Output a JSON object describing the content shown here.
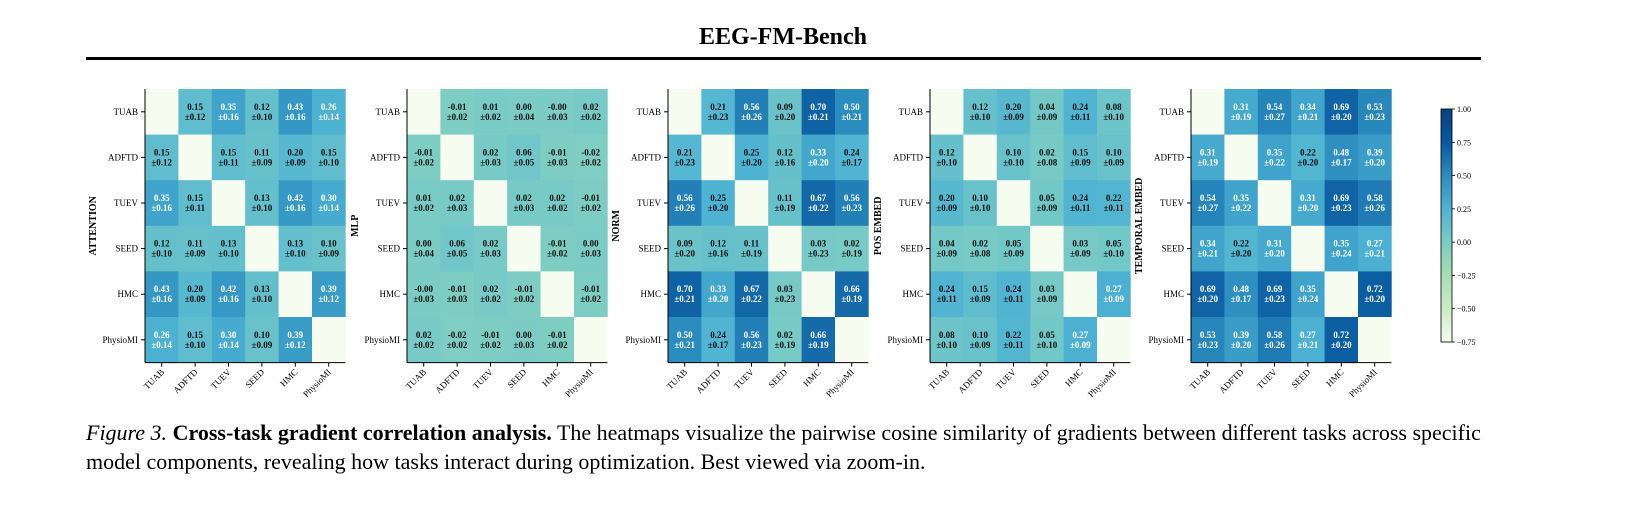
{
  "header_title": "EEG-FM-Bench",
  "caption": {
    "figure_label": "Figure 3.",
    "bold_text": "Cross-task gradient correlation analysis.",
    "text": " The heatmaps visualize the pairwise cosine similarity of gradients between different tasks across specific model components, revealing how tasks interact during optimization. Best viewed via zoom-in."
  },
  "chart_data": [
    {
      "type": "heatmap",
      "ylabel": "ATTENTION",
      "categories": [
        "TUAB",
        "ADFTD",
        "TUEV",
        "SEED",
        "HMC",
        "PhysioMI"
      ],
      "values": [
        [
          null,
          0.15,
          0.35,
          0.12,
          0.43,
          0.26
        ],
        [
          0.15,
          null,
          0.15,
          0.11,
          0.2,
          0.15
        ],
        [
          0.35,
          0.15,
          null,
          0.13,
          0.42,
          0.3
        ],
        [
          0.12,
          0.11,
          0.13,
          null,
          0.13,
          0.1
        ],
        [
          0.43,
          0.2,
          0.42,
          0.13,
          null,
          0.39
        ],
        [
          0.26,
          0.15,
          0.3,
          0.1,
          0.39,
          null
        ]
      ],
      "std": [
        [
          null,
          0.12,
          0.16,
          0.1,
          0.16,
          0.14
        ],
        [
          0.12,
          null,
          0.11,
          0.09,
          0.09,
          0.1
        ],
        [
          0.16,
          0.11,
          null,
          0.1,
          0.16,
          0.14
        ],
        [
          0.1,
          0.09,
          0.1,
          null,
          0.1,
          0.09
        ],
        [
          0.16,
          0.09,
          0.16,
          0.1,
          null,
          0.12
        ],
        [
          0.14,
          0.1,
          0.14,
          0.09,
          0.12,
          null
        ]
      ]
    },
    {
      "type": "heatmap",
      "ylabel": "MLP",
      "categories": [
        "TUAB",
        "ADFTD",
        "TUEV",
        "SEED",
        "HMC",
        "PhysioMI"
      ],
      "values": [
        [
          null,
          -0.01,
          0.01,
          0.0,
          -0.0,
          0.02
        ],
        [
          -0.01,
          null,
          0.02,
          0.06,
          -0.01,
          -0.02
        ],
        [
          0.01,
          0.02,
          null,
          0.02,
          0.02,
          -0.01
        ],
        [
          0.0,
          0.06,
          0.02,
          null,
          -0.01,
          0.0
        ],
        [
          -0.0,
          -0.01,
          0.02,
          -0.01,
          null,
          -0.01
        ],
        [
          0.02,
          -0.02,
          -0.01,
          0.0,
          -0.01,
          null
        ]
      ],
      "std": [
        [
          null,
          0.02,
          0.02,
          0.04,
          0.03,
          0.02
        ],
        [
          0.02,
          null,
          0.03,
          0.05,
          0.03,
          0.02
        ],
        [
          0.02,
          0.03,
          null,
          0.03,
          0.02,
          0.02
        ],
        [
          0.04,
          0.05,
          0.03,
          null,
          0.02,
          0.03
        ],
        [
          0.03,
          0.03,
          0.02,
          0.02,
          null,
          0.02
        ],
        [
          0.02,
          0.02,
          0.02,
          0.03,
          0.02,
          null
        ]
      ]
    },
    {
      "type": "heatmap",
      "ylabel": "NORM",
      "categories": [
        "TUAB",
        "ADFTD",
        "TUEV",
        "SEED",
        "HMC",
        "PhysioMI"
      ],
      "values": [
        [
          null,
          0.21,
          0.56,
          0.09,
          0.7,
          0.5
        ],
        [
          0.21,
          null,
          0.25,
          0.12,
          0.33,
          0.24
        ],
        [
          0.56,
          0.25,
          null,
          0.11,
          0.67,
          0.56
        ],
        [
          0.09,
          0.12,
          0.11,
          null,
          0.03,
          0.02
        ],
        [
          0.7,
          0.33,
          0.67,
          0.03,
          null,
          0.66
        ],
        [
          0.5,
          0.24,
          0.56,
          0.02,
          0.66,
          null
        ]
      ],
      "std": [
        [
          null,
          0.23,
          0.26,
          0.2,
          0.21,
          0.21
        ],
        [
          0.23,
          null,
          0.2,
          0.16,
          0.2,
          0.17
        ],
        [
          0.26,
          0.2,
          null,
          0.19,
          0.22,
          0.23
        ],
        [
          0.2,
          0.16,
          0.19,
          null,
          0.23,
          0.19
        ],
        [
          0.21,
          0.2,
          0.22,
          0.23,
          null,
          0.19
        ],
        [
          0.21,
          0.17,
          0.23,
          0.19,
          0.19,
          null
        ]
      ]
    },
    {
      "type": "heatmap",
      "ylabel": "POS EMBED",
      "categories": [
        "TUAB",
        "ADFTD",
        "TUEV",
        "SEED",
        "HMC",
        "PhysioMI"
      ],
      "values": [
        [
          null,
          0.12,
          0.2,
          0.04,
          0.24,
          0.08
        ],
        [
          0.12,
          null,
          0.1,
          0.02,
          0.15,
          0.1
        ],
        [
          0.2,
          0.1,
          null,
          0.05,
          0.24,
          0.22
        ],
        [
          0.04,
          0.02,
          0.05,
          null,
          0.03,
          0.05
        ],
        [
          0.24,
          0.15,
          0.24,
          0.03,
          null,
          0.27
        ],
        [
          0.08,
          0.1,
          0.22,
          0.05,
          0.27,
          null
        ]
      ],
      "std": [
        [
          null,
          0.1,
          0.09,
          0.09,
          0.11,
          0.1
        ],
        [
          0.1,
          null,
          0.1,
          0.08,
          0.09,
          0.09
        ],
        [
          0.09,
          0.1,
          null,
          0.09,
          0.11,
          0.11
        ],
        [
          0.09,
          0.08,
          0.09,
          null,
          0.09,
          0.1
        ],
        [
          0.11,
          0.09,
          0.11,
          0.09,
          null,
          0.09
        ],
        [
          0.1,
          0.09,
          0.11,
          0.1,
          0.09,
          null
        ]
      ]
    },
    {
      "type": "heatmap",
      "ylabel": "TEMPORAL EMBED",
      "categories": [
        "TUAB",
        "ADFTD",
        "TUEV",
        "SEED",
        "HMC",
        "PhysioMI"
      ],
      "values": [
        [
          null,
          0.31,
          0.54,
          0.34,
          0.69,
          0.53
        ],
        [
          0.31,
          null,
          0.35,
          0.22,
          0.48,
          0.39
        ],
        [
          0.54,
          0.35,
          null,
          0.31,
          0.69,
          0.58
        ],
        [
          0.34,
          0.22,
          0.31,
          null,
          0.35,
          0.27
        ],
        [
          0.69,
          0.48,
          0.69,
          0.35,
          null,
          0.72
        ],
        [
          0.53,
          0.39,
          0.58,
          0.27,
          0.72,
          null
        ]
      ],
      "std": [
        [
          null,
          0.19,
          0.27,
          0.21,
          0.2,
          0.23
        ],
        [
          0.19,
          null,
          0.22,
          0.2,
          0.17,
          0.2
        ],
        [
          0.27,
          0.22,
          null,
          0.2,
          0.23,
          0.26
        ],
        [
          0.21,
          0.2,
          0.2,
          null,
          0.24,
          0.21
        ],
        [
          0.2,
          0.17,
          0.23,
          0.24,
          null,
          0.2
        ],
        [
          0.23,
          0.2,
          0.26,
          0.21,
          0.2,
          null
        ]
      ]
    }
  ],
  "colorbar": {
    "range": [
      -0.75,
      1.0
    ],
    "ticks": [
      1.0,
      0.75,
      0.5,
      0.25,
      0.0,
      -0.25,
      -0.5,
      -0.75
    ],
    "tick_labels": [
      "1.00",
      "0.75",
      "0.50",
      "0.25",
      "0.00",
      "−0.25",
      "−0.50",
      "−0.75"
    ],
    "colormap_stops": [
      "#f7fcf0",
      "#ccebc5",
      "#a8ddb5",
      "#7bccc4",
      "#4eb3d3",
      "#2b8cbe",
      "#08589e",
      "#084081"
    ]
  }
}
